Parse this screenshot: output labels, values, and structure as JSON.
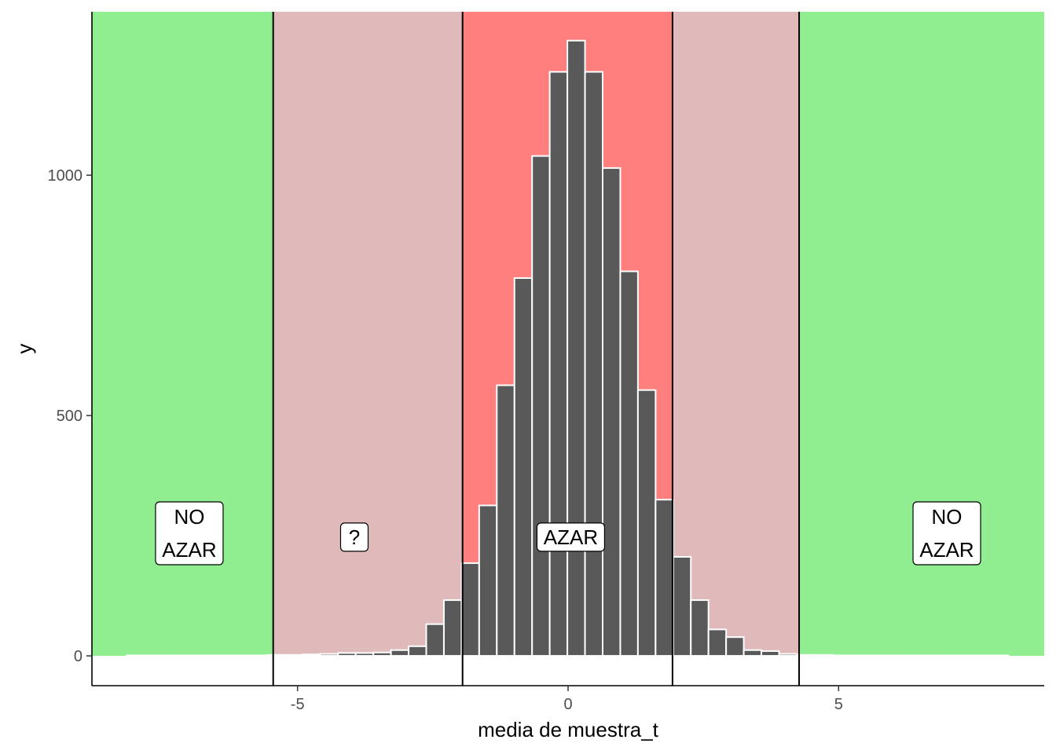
{
  "chart_data": {
    "type": "bar",
    "xlabel": "media de muestra_t",
    "ylabel": "y",
    "xlim": [
      -8.8,
      8.8
    ],
    "ylim": [
      -62,
      1340
    ],
    "x_ticks": [
      -5,
      0,
      5
    ],
    "x_tick_labels": [
      "-5",
      "0",
      "5"
    ],
    "y_ticks": [
      0,
      500,
      1000
    ],
    "y_tick_labels": [
      "0",
      "500",
      "1000"
    ],
    "grid": false,
    "bin_width": 0.326,
    "bins": [
      {
        "x": -8.0,
        "y": 1
      },
      {
        "x": -7.674,
        "y": 1
      },
      {
        "x": -7.348,
        "y": 1
      },
      {
        "x": -7.022,
        "y": 1
      },
      {
        "x": -6.696,
        "y": 1
      },
      {
        "x": -6.37,
        "y": 1
      },
      {
        "x": -6.044,
        "y": 1
      },
      {
        "x": -5.718,
        "y": 1
      },
      {
        "x": -5.392,
        "y": 2
      },
      {
        "x": -5.066,
        "y": 2
      },
      {
        "x": -4.74,
        "y": 3
      },
      {
        "x": -4.414,
        "y": 4
      },
      {
        "x": -4.088,
        "y": 6
      },
      {
        "x": -3.762,
        "y": 6
      },
      {
        "x": -3.436,
        "y": 7
      },
      {
        "x": -3.11,
        "y": 12
      },
      {
        "x": -2.784,
        "y": 20
      },
      {
        "x": -2.458,
        "y": 66
      },
      {
        "x": -2.132,
        "y": 116
      },
      {
        "x": -1.806,
        "y": 193
      },
      {
        "x": -1.48,
        "y": 313
      },
      {
        "x": -1.154,
        "y": 563
      },
      {
        "x": -0.828,
        "y": 786
      },
      {
        "x": -0.502,
        "y": 1040
      },
      {
        "x": -0.176,
        "y": 1215
      },
      {
        "x": 0.15,
        "y": 1280
      },
      {
        "x": 0.476,
        "y": 1215
      },
      {
        "x": 0.802,
        "y": 1015
      },
      {
        "x": 1.128,
        "y": 800
      },
      {
        "x": 1.454,
        "y": 553
      },
      {
        "x": 1.78,
        "y": 325
      },
      {
        "x": 2.106,
        "y": 206
      },
      {
        "x": 2.432,
        "y": 116
      },
      {
        "x": 2.758,
        "y": 55
      },
      {
        "x": 3.084,
        "y": 39
      },
      {
        "x": 3.41,
        "y": 12
      },
      {
        "x": 3.736,
        "y": 10
      },
      {
        "x": 4.062,
        "y": 4
      },
      {
        "x": 4.388,
        "y": 2
      },
      {
        "x": 4.714,
        "y": 2
      },
      {
        "x": 5.04,
        "y": 1
      },
      {
        "x": 5.366,
        "y": 1
      },
      {
        "x": 5.692,
        "y": 1
      },
      {
        "x": 6.018,
        "y": 1
      },
      {
        "x": 6.344,
        "y": 1
      },
      {
        "x": 6.67,
        "y": 1
      },
      {
        "x": 6.996,
        "y": 1
      },
      {
        "x": 7.322,
        "y": 1
      },
      {
        "x": 7.648,
        "y": 1
      },
      {
        "x": 7.974,
        "y": 1
      }
    ],
    "regions": [
      {
        "x0": -8.8,
        "x1": -5.45,
        "color": "#90EE90"
      },
      {
        "x0": -5.45,
        "x1": -1.95,
        "color": "#E0BABA"
      },
      {
        "x0": -1.95,
        "x1": 1.93,
        "color": "#FF7F7F"
      },
      {
        "x0": 1.93,
        "x1": 4.27,
        "color": "#E0BABA"
      },
      {
        "x0": 4.27,
        "x1": 8.8,
        "color": "#90EE90"
      }
    ],
    "vlines": [
      -5.45,
      -1.95,
      1.93,
      4.27
    ],
    "annotations": [
      {
        "x": -7.0,
        "y": 255,
        "lines": [
          "NO",
          "AZAR"
        ]
      },
      {
        "x": -3.95,
        "y": 247,
        "lines": [
          "?"
        ]
      },
      {
        "x": 0.05,
        "y": 247,
        "lines": [
          "AZAR"
        ]
      },
      {
        "x": 7.0,
        "y": 255,
        "lines": [
          "NO",
          "AZAR"
        ]
      }
    ],
    "bar_fill": "#595959",
    "bar_stroke": "#ffffff"
  }
}
